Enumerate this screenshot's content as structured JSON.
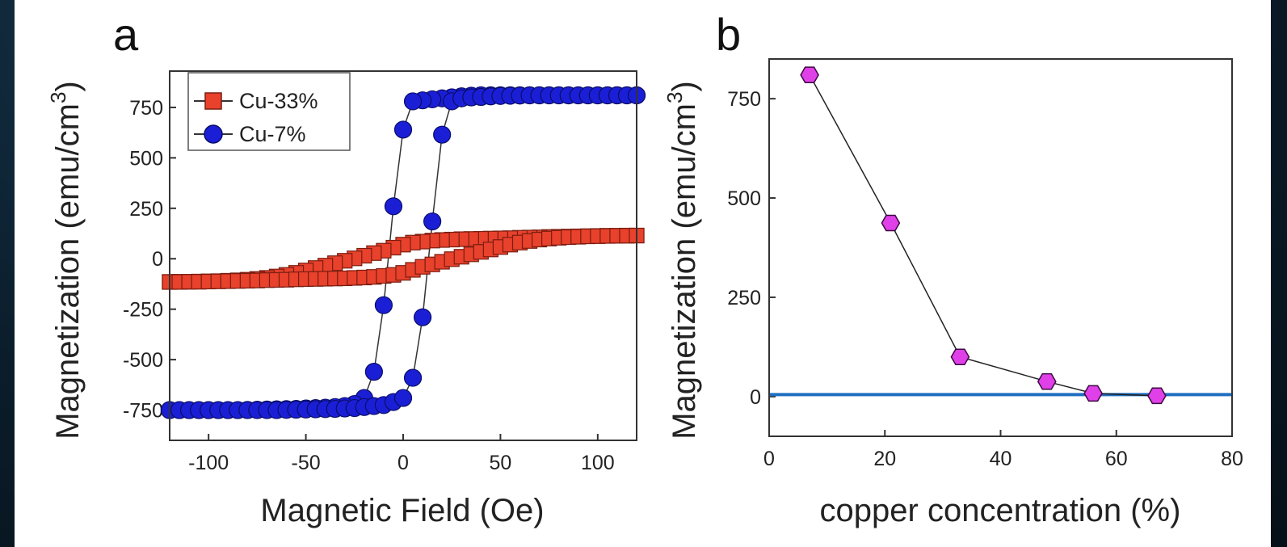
{
  "chart_data": [
    {
      "type": "scatter",
      "panel_label": "a",
      "xlabel": "Magnetic Field (Oe)",
      "ylabel": "Magnetization (emu/cm³)",
      "ylabel_main": "Magnetization (emu/cm",
      "ylabel_sup": "3",
      "ylabel_end": ")",
      "xlim": [
        -120,
        120
      ],
      "ylim": [
        -900,
        930
      ],
      "xticks": [
        -100,
        -50,
        0,
        50,
        100
      ],
      "xtick_labels": [
        "-100",
        "-50",
        "0",
        "50",
        "100"
      ],
      "yticks": [
        750,
        500,
        250,
        0,
        -250,
        -500,
        -750
      ],
      "ytick_labels": [
        "750",
        "500",
        "250",
        "0",
        "-250",
        "-500",
        "-750"
      ],
      "legend": "top-left",
      "series": [
        {
          "name": "Cu-33%",
          "marker": "square",
          "color": "#e8412c",
          "descending": {
            "x": [
              120,
              115,
              110,
              105,
              100,
              95,
              90,
              85,
              80,
              75,
              70,
              65,
              60,
              55,
              50,
              45,
              40,
              35,
              30,
              25,
              20,
              15,
              10,
              5,
              0,
              -5,
              -10,
              -15,
              -20,
              -25,
              -30,
              -35,
              -40,
              -45,
              -50,
              -55,
              -60,
              -65,
              -70,
              -75,
              -80,
              -85,
              -90,
              -95,
              -100,
              -105,
              -110,
              -115,
              -120
            ],
            "y": [
              115,
              115,
              114,
              114,
              113,
              112,
              111,
              110,
              109,
              108,
              106,
              105,
              104,
              102,
              101,
              100,
              99,
              98,
              97,
              95,
              93,
              90,
              85,
              80,
              70,
              55,
              40,
              28,
              15,
              2,
              -10,
              -22,
              -34,
              -46,
              -58,
              -70,
              -80,
              -88,
              -95,
              -100,
              -104,
              -107,
              -109,
              -111,
              -112,
              -113,
              -114,
              -114,
              -115
            ]
          },
          "ascending": {
            "x": [
              -120,
              -115,
              -110,
              -105,
              -100,
              -95,
              -90,
              -85,
              -80,
              -75,
              -70,
              -65,
              -60,
              -55,
              -50,
              -45,
              -40,
              -35,
              -30,
              -25,
              -20,
              -15,
              -10,
              -5,
              0,
              5,
              10,
              15,
              20,
              25,
              30,
              35,
              40,
              45,
              50,
              55,
              60,
              65,
              70,
              75,
              80,
              85,
              90,
              95,
              100,
              105,
              110,
              115,
              120
            ],
            "y": [
              -115,
              -115,
              -114,
              -114,
              -113,
              -112,
              -111,
              -110,
              -109,
              -108,
              -106,
              -105,
              -104,
              -102,
              -101,
              -100,
              -99,
              -98,
              -97,
              -95,
              -93,
              -90,
              -85,
              -80,
              -70,
              -55,
              -40,
              -28,
              -15,
              -2,
              10,
              22,
              34,
              46,
              58,
              70,
              80,
              88,
              95,
              100,
              104,
              107,
              109,
              111,
              112,
              113,
              114,
              114,
              115
            ]
          }
        },
        {
          "name": "Cu-7%",
          "marker": "circle",
          "color": "#1a1fd6",
          "descending": {
            "x": [
              120,
              115,
              110,
              105,
              100,
              95,
              90,
              85,
              80,
              75,
              70,
              65,
              60,
              55,
              50,
              45,
              40,
              35,
              30,
              25,
              20,
              15,
              10,
              5,
              0,
              -5,
              -10,
              -15,
              -20,
              -25,
              -30,
              -35,
              -40,
              -45,
              -50,
              -55,
              -60,
              -65,
              -70,
              -75,
              -80,
              -85,
              -90,
              -95,
              -100,
              -105,
              -110,
              -115,
              -120
            ],
            "y": [
              810,
              810,
              810,
              810,
              810,
              810,
              810,
              810,
              810,
              810,
              810,
              810,
              810,
              810,
              810,
              810,
              810,
              808,
              805,
              800,
              795,
              790,
              785,
              780,
              640,
              260,
              -230,
              -560,
              -690,
              -720,
              -730,
              -735,
              -738,
              -740,
              -742,
              -744,
              -745,
              -746,
              -747,
              -748,
              -749,
              -750,
              -750,
              -750,
              -750,
              -750,
              -750,
              -750,
              -750
            ]
          },
          "ascending": {
            "x": [
              -120,
              -115,
              -110,
              -105,
              -100,
              -95,
              -90,
              -85,
              -80,
              -75,
              -70,
              -65,
              -60,
              -55,
              -50,
              -45,
              -40,
              -35,
              -30,
              -25,
              -20,
              -15,
              -10,
              -5,
              0,
              5,
              10,
              15,
              20,
              25,
              30,
              35,
              40,
              45,
              50,
              55,
              60,
              65,
              70,
              75,
              80,
              85,
              90,
              95,
              100,
              105,
              110,
              115,
              120
            ],
            "y": [
              -750,
              -750,
              -750,
              -750,
              -750,
              -750,
              -750,
              -750,
              -750,
              -750,
              -750,
              -750,
              -749,
              -748,
              -747,
              -746,
              -745,
              -744,
              -742,
              -740,
              -735,
              -730,
              -725,
              -710,
              -690,
              -590,
              -290,
              185,
              615,
              780,
              795,
              800,
              802,
              805,
              807,
              808,
              809,
              810,
              810,
              810,
              810,
              810,
              810,
              810,
              810,
              810,
              810,
              810,
              810
            ]
          }
        }
      ]
    },
    {
      "type": "line",
      "panel_label": "b",
      "xlabel": "copper concentration (%)",
      "ylabel": "Magnetization (emu/cm³)",
      "ylabel_main": "Magnetization (emu/cm",
      "ylabel_sup": "3",
      "ylabel_end": ")",
      "xlim": [
        0,
        80
      ],
      "ylim": [
        -100,
        850
      ],
      "xticks": [
        0,
        20,
        40,
        60,
        80
      ],
      "xtick_labels": [
        "0",
        "20",
        "40",
        "60",
        "80"
      ],
      "yticks": [
        0,
        250,
        500,
        750
      ],
      "ytick_labels": [
        "0",
        "250",
        "500",
        "750"
      ],
      "reference_line_y": 5,
      "reference_line_color": "#1f6fc0",
      "marker": "hexagon",
      "marker_color": "#e040e8",
      "x": [
        7,
        21,
        33,
        48,
        56,
        67
      ],
      "y": [
        810,
        437,
        100,
        38,
        8,
        2
      ]
    }
  ]
}
